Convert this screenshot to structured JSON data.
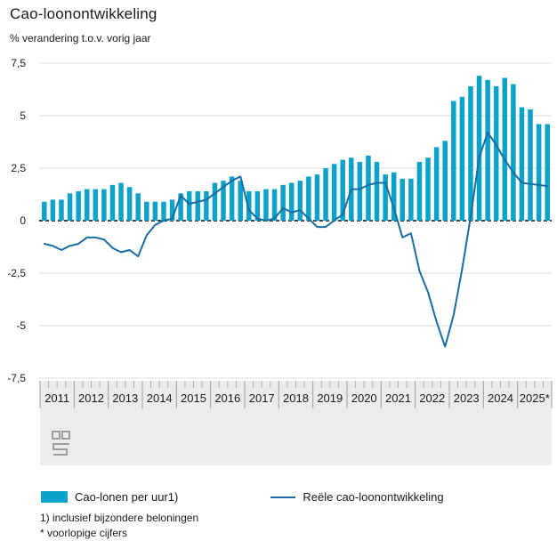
{
  "title": "Cao-loonontwikkeling",
  "subtitle": "% verandering t.o.v. vorig jaar",
  "legend": {
    "bar_label": "Cao-lonen per uur1)",
    "line_label": "Reële cao-loonontwikkeling"
  },
  "footnotes": {
    "note1": "1) inclusief bijzondere beloningen",
    "note2": "* voorlopige cijfers"
  },
  "logo_name": "cbs-logo",
  "colors": {
    "bar": "#0ca2c9",
    "line": "#1a6ca4",
    "grid": "#dcdcdc",
    "zero_line": "#3c3c3c",
    "band": "#ececec",
    "quarter_tick": "#b0b0b0",
    "year_separator": "#9e9e9e",
    "text": "#1a1a1a",
    "logo": "#9e9e9e"
  },
  "chart_data": {
    "type": "bar",
    "title": "Cao-loonontwikkeling",
    "ylabel": "% verandering t.o.v. vorig jaar",
    "ylim": [
      -7.5,
      7.5
    ],
    "y_tick_step": 2.5,
    "y_tick_labels": [
      "7,5",
      "5",
      "2,5",
      "0",
      "-2,5",
      "-5",
      "-7,5"
    ],
    "y_tick_values": [
      7.5,
      5,
      2.5,
      0,
      -2.5,
      -5,
      -7.5
    ],
    "grid": true,
    "legend_position": "bottom",
    "categories": [
      "2011",
      "2012",
      "2013",
      "2014",
      "2015",
      "2016",
      "2017",
      "2018",
      "2019",
      "2020",
      "2021",
      "2022",
      "2023",
      "2024",
      "2025*"
    ],
    "points_per_category": 4,
    "series": [
      {
        "name": "Cao-lonen per uur1)",
        "type": "bar",
        "values": [
          0.9,
          1.0,
          1.0,
          1.3,
          1.4,
          1.5,
          1.5,
          1.5,
          1.7,
          1.8,
          1.6,
          1.3,
          0.9,
          0.9,
          0.9,
          1.0,
          1.3,
          1.4,
          1.4,
          1.4,
          1.8,
          1.9,
          2.1,
          1.9,
          1.4,
          1.4,
          1.5,
          1.5,
          1.7,
          1.8,
          1.9,
          2.1,
          2.2,
          2.5,
          2.7,
          2.9,
          3.0,
          2.8,
          3.1,
          2.8,
          2.2,
          2.3,
          2.0,
          2.0,
          2.8,
          3.0,
          3.5,
          3.8,
          5.7,
          5.9,
          6.4,
          6.9,
          6.7,
          6.4,
          6.8,
          6.5,
          5.4,
          5.3,
          4.6,
          4.6
        ]
      },
      {
        "name": "Reële cao-loonontwikkeling",
        "type": "line",
        "values": [
          -1.1,
          -1.2,
          -1.4,
          -1.2,
          -1.1,
          -0.8,
          -0.8,
          -0.9,
          -1.3,
          -1.5,
          -1.4,
          -1.7,
          -0.7,
          -0.2,
          0.0,
          0.1,
          1.2,
          0.8,
          0.9,
          1.0,
          1.3,
          1.6,
          1.9,
          2.1,
          0.5,
          0.1,
          0.0,
          0.1,
          0.6,
          0.4,
          0.5,
          0.1,
          -0.3,
          -0.3,
          0.0,
          0.3,
          1.5,
          1.5,
          1.7,
          1.8,
          1.8,
          0.6,
          -0.8,
          -0.6,
          -2.4,
          -3.4,
          -4.8,
          -6.0,
          -4.5,
          -2.3,
          0.2,
          3.0,
          4.2,
          3.6,
          2.9,
          2.3,
          1.8,
          1.75,
          1.7,
          1.65
        ]
      }
    ]
  }
}
